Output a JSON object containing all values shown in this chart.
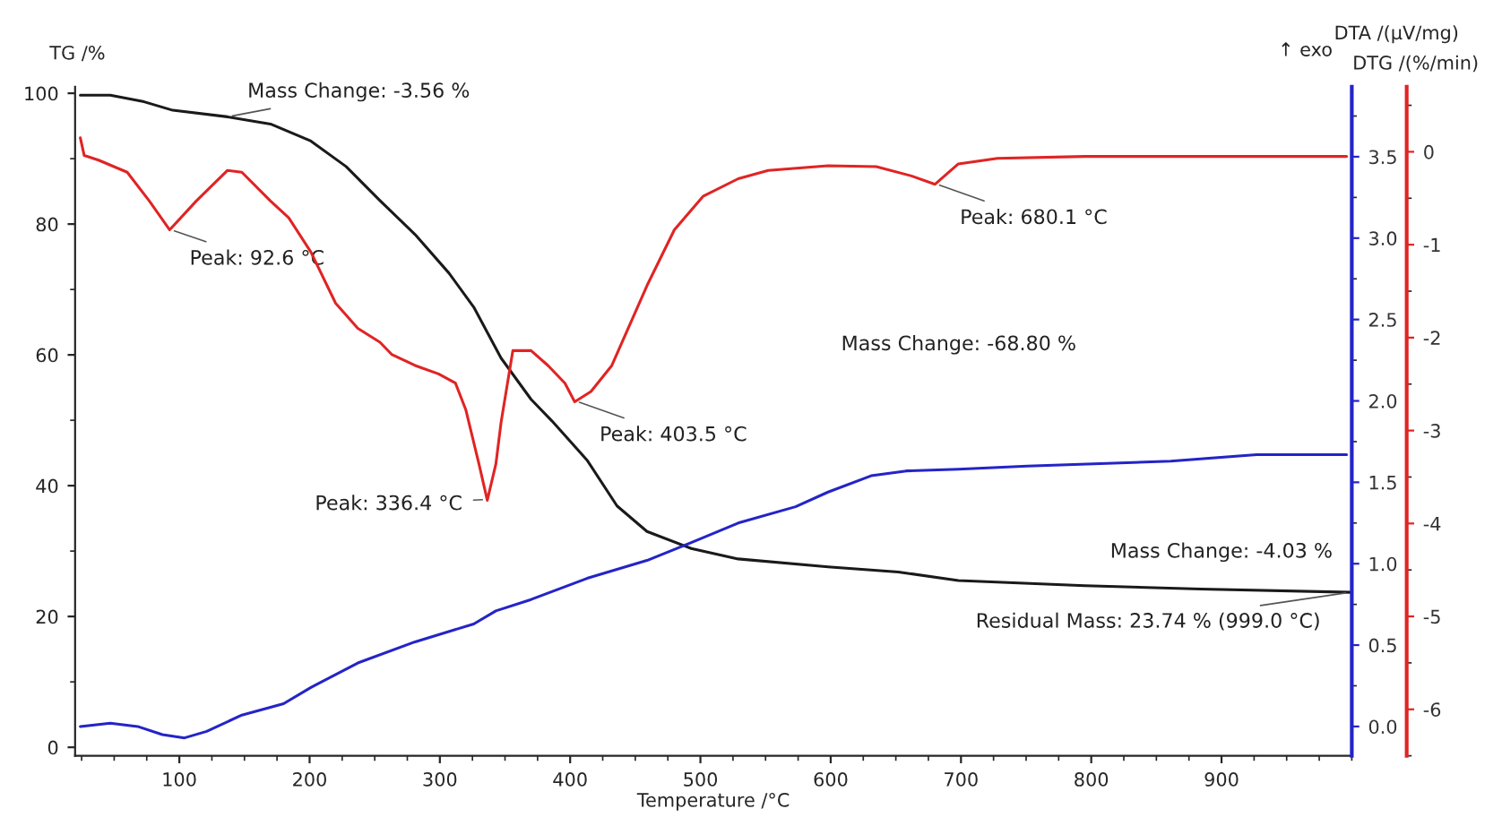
{
  "chart_data": {
    "type": "line",
    "xlabel": "Temperature /°C",
    "ylabel": "TG /%",
    "y2label": "DTA /(µV/mg)",
    "y3label": "DTG /(%/min)",
    "xlim": [
      20,
      1000
    ],
    "xticks": [
      100,
      200,
      300,
      400,
      500,
      600,
      700,
      800,
      900
    ],
    "ylim": [
      -1.3,
      101
    ],
    "yticks": [
      0,
      20,
      40,
      60,
      80,
      100
    ],
    "y2lim": [
      -0.18,
      3.93
    ],
    "y2ticks": [
      {
        "value": 0,
        "label": "0.0"
      },
      0.5,
      {
        "value": 1,
        "label": "1.0"
      },
      1.5,
      {
        "value": 2,
        "label": "2.0"
      },
      2.5,
      {
        "value": 3,
        "label": "3.0"
      },
      3.5
    ],
    "y3lim": [
      -6.5,
      0.7
    ],
    "y3ticks": [
      -6,
      -5,
      -4,
      -3,
      -2,
      -1,
      0
    ],
    "grid": false,
    "legend": false,
    "marker": "none",
    "line_style": "solid",
    "series": [
      {
        "color": "#1a1a1a",
        "axis": "y",
        "x": [
          24,
          47,
          73,
          95,
          137,
          170,
          201,
          228,
          254,
          281,
          307,
          326,
          347,
          370,
          386,
          413,
          436,
          459,
          493,
          529,
          598,
          652,
          698,
          795,
          884,
          999
        ],
        "values": [
          99.7,
          99.7,
          98.7,
          97.4,
          96.4,
          95.3,
          92.7,
          88.8,
          83.6,
          78.4,
          72.5,
          67.3,
          59.5,
          53.2,
          49.9,
          43.9,
          36.9,
          33.0,
          30.4,
          28.8,
          27.6,
          26.8,
          25.5,
          24.7,
          24.2,
          23.7
        ]
      },
      {
        "color": "#2424c8",
        "axis": "y2",
        "x": [
          24,
          47,
          68,
          87,
          104,
          121,
          148,
          180,
          201,
          237,
          281,
          326,
          343,
          370,
          413,
          459,
          493,
          529,
          573,
          598,
          631,
          658,
          698,
          751,
          861,
          927,
          996
        ],
        "values": [
          0.0,
          0.02,
          0.0,
          -0.05,
          -0.07,
          -0.03,
          0.07,
          0.14,
          0.24,
          0.39,
          0.52,
          0.63,
          0.71,
          0.78,
          0.91,
          1.02,
          1.13,
          1.25,
          1.35,
          1.44,
          1.54,
          1.57,
          1.58,
          1.6,
          1.63,
          1.67,
          1.67
        ]
      },
      {
        "color": "#e02424",
        "axis": "y3",
        "x": [
          24,
          27,
          38,
          60,
          77,
          92.6,
          113,
          137,
          148,
          170,
          184,
          201,
          220,
          237,
          254,
          263,
          281,
          299,
          312,
          320,
          330,
          336.4,
          343,
          347,
          356,
          370,
          383,
          396,
          403.5,
          416,
          432,
          459,
          480,
          502,
          529,
          552,
          598,
          635,
          662,
          680.1,
          698,
          728,
          795,
          901,
          996
        ],
        "values": [
          0.15,
          -0.04,
          -0.09,
          -0.22,
          -0.53,
          -0.84,
          -0.53,
          -0.2,
          -0.22,
          -0.53,
          -0.71,
          -1.08,
          -1.63,
          -1.9,
          -2.05,
          -2.18,
          -2.3,
          -2.39,
          -2.49,
          -2.78,
          -3.36,
          -3.75,
          -3.36,
          -2.91,
          -2.14,
          -2.14,
          -2.3,
          -2.49,
          -2.69,
          -2.58,
          -2.3,
          -1.44,
          -0.84,
          -0.48,
          -0.29,
          -0.2,
          -0.15,
          -0.16,
          -0.26,
          -0.35,
          -0.13,
          -0.07,
          -0.05,
          -0.05,
          -0.05
        ]
      }
    ],
    "annotations": [
      {
        "text": "Mass Change: -3.56 %",
        "x": 137,
        "y": 96.4
      },
      {
        "text": "Peak: 92.6 °C",
        "x": 92.6,
        "y": 79.2
      },
      {
        "text": "Peak: 336.4 °C",
        "x": 336.4,
        "y": 37.9
      },
      {
        "text": "Peak: 403.5 °C",
        "x": 403.5,
        "y": 53.0
      },
      {
        "text": "Peak: 680.1 °C",
        "x": 680.1,
        "y": 86.2
      },
      "Mass Change: -68.80 %",
      "Mass Change: -4.03 %",
      {
        "text": "Residual Mass: 23.74 % (999.0 °C)",
        "x": 999,
        "y": 23.7
      },
      "↑ exo"
    ]
  }
}
